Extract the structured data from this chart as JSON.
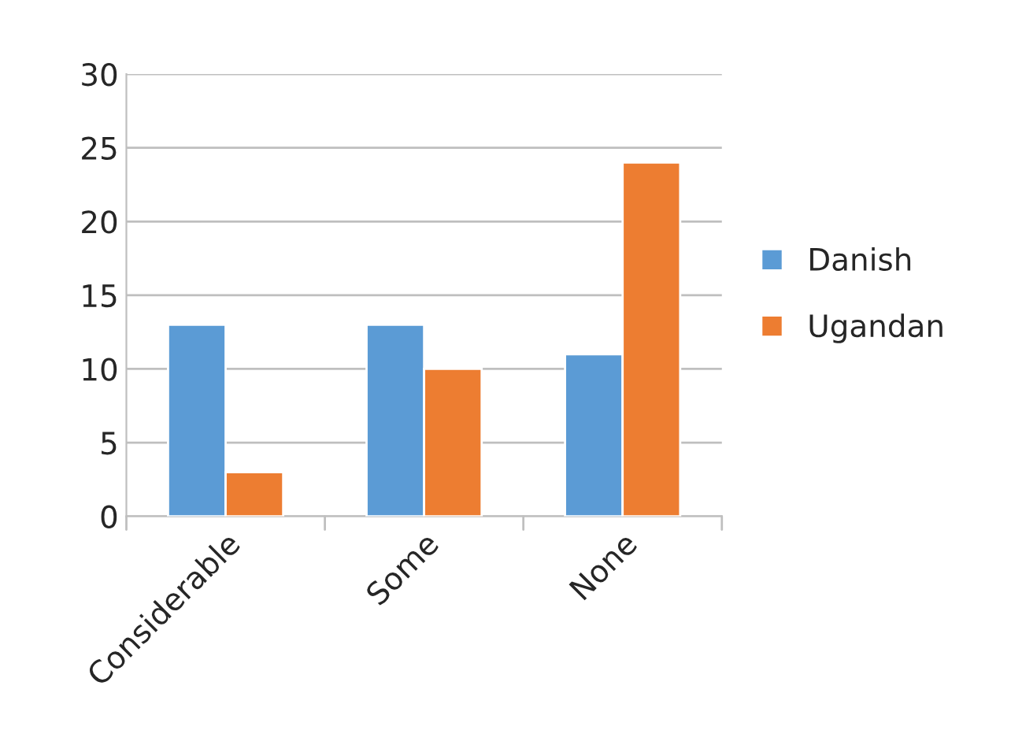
{
  "chart_data": {
    "type": "bar",
    "categories": [
      "Considerable",
      "Some",
      "None"
    ],
    "series": [
      {
        "name": "Danish",
        "color": "#5b9bd5",
        "values": [
          13,
          13,
          11
        ]
      },
      {
        "name": "Ugandan",
        "color": "#ed7d31",
        "values": [
          3,
          10,
          24
        ]
      }
    ],
    "ylim": [
      0,
      30
    ],
    "yticks": [
      0,
      5,
      10,
      15,
      20,
      25,
      30
    ],
    "grid": "y",
    "legend": "right"
  }
}
